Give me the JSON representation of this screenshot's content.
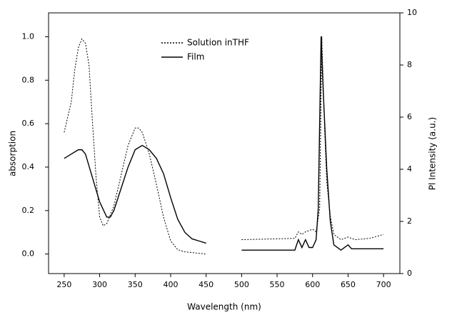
{
  "chart_data": {
    "type": "line",
    "x_label": "Wavelength (nm)",
    "y_label": "absorption",
    "y2_label": "Pl Intensity (a.u.)",
    "xlim": [
      228,
      723
    ],
    "xticks": [
      250,
      300,
      350,
      400,
      450,
      500,
      550,
      600,
      650,
      700
    ],
    "ylim": [
      -0.09,
      1.11
    ],
    "yticks": [
      {
        "value": 0,
        "label": "0.0"
      },
      0.2,
      0.4,
      0.6,
      0.8,
      {
        "value": 1,
        "label": "1.0"
      }
    ],
    "y2lim": [
      0,
      10
    ],
    "y2ticks": [
      0,
      2,
      4,
      6,
      8,
      10
    ],
    "legend": "upper center",
    "series": [
      {
        "name": "Solution inTHF",
        "color": "#000000",
        "style": "dotted",
        "x": [
          250,
          260,
          265,
          270,
          275,
          280,
          285,
          290,
          295,
          300,
          305,
          310,
          320,
          330,
          340,
          350,
          355,
          360,
          370,
          380,
          390,
          400,
          410,
          420,
          450
        ],
        "values": [
          0.56,
          0.7,
          0.85,
          0.95,
          0.99,
          0.97,
          0.87,
          0.6,
          0.35,
          0.17,
          0.13,
          0.14,
          0.22,
          0.36,
          0.5,
          0.58,
          0.58,
          0.56,
          0.46,
          0.32,
          0.17,
          0.06,
          0.02,
          0.01,
          0.0
        ]
      },
      {
        "name": "Film",
        "color": "#000000",
        "style": "solid",
        "x": [
          250,
          260,
          270,
          275,
          280,
          290,
          300,
          310,
          315,
          320,
          330,
          340,
          350,
          360,
          370,
          380,
          390,
          400,
          410,
          420,
          430,
          440,
          450
        ],
        "values": [
          0.44,
          0.46,
          0.48,
          0.48,
          0.46,
          0.35,
          0.24,
          0.17,
          0.17,
          0.2,
          0.3,
          0.4,
          0.48,
          0.5,
          0.48,
          0.44,
          0.37,
          0.26,
          0.16,
          0.1,
          0.07,
          0.06,
          0.05
        ]
      },
      {
        "color": "#000000",
        "style": "dotted",
        "axis": "y2",
        "x": [
          500,
          575,
          580,
          585,
          590,
          600,
          605,
          610,
          613,
          617,
          620,
          625,
          630,
          640,
          650,
          660,
          680,
          700
        ],
        "values": [
          1.3,
          1.35,
          1.6,
          1.5,
          1.6,
          1.7,
          1.6,
          2.5,
          9.1,
          5.5,
          3.5,
          2.2,
          1.5,
          1.3,
          1.4,
          1.3,
          1.35,
          1.5
        ]
      },
      {
        "color": "#000000",
        "style": "solid",
        "axis": "y2",
        "x": [
          500,
          575,
          580,
          585,
          590,
          595,
          600,
          605,
          608,
          612,
          615,
          620,
          625,
          630,
          640,
          650,
          655,
          700
        ],
        "values": [
          0.9,
          0.9,
          1.3,
          1.0,
          1.3,
          1.0,
          1.0,
          1.3,
          2.5,
          9.1,
          7,
          4,
          2,
          1.1,
          0.9,
          1.1,
          0.95,
          0.95
        ]
      }
    ]
  }
}
